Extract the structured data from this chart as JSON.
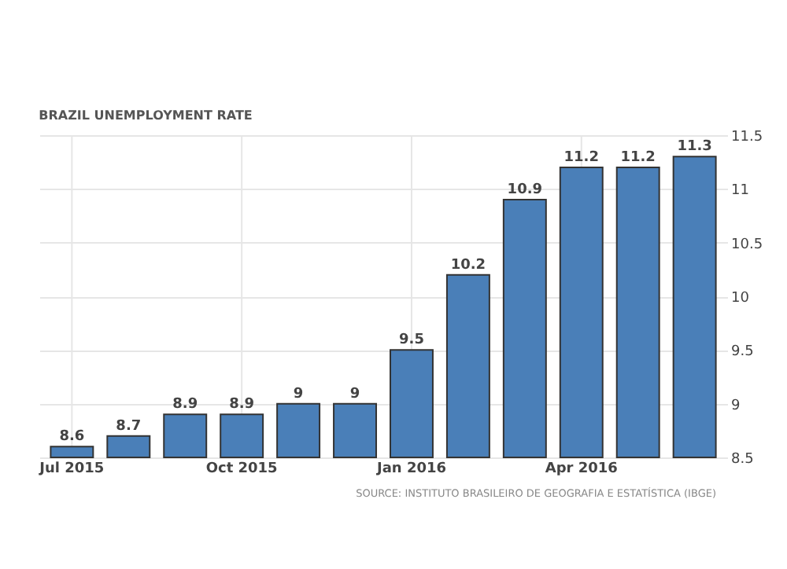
{
  "chart_data": {
    "type": "bar",
    "title": "BRAZIL UNEMPLOYMENT RATE",
    "categories": [
      "Jul 2015",
      null,
      null,
      "Oct 2015",
      null,
      null,
      "Jan 2016",
      null,
      null,
      "Apr 2016",
      null,
      null
    ],
    "values": [
      8.6,
      8.7,
      8.9,
      8.9,
      9,
      9,
      9.5,
      10.2,
      10.9,
      11.2,
      11.2,
      11.3
    ],
    "color": "#4a7fb8",
    "ylim": [
      8.5,
      11.5
    ],
    "yticks": [
      8.5,
      9,
      9.5,
      10,
      10.5,
      11,
      11.5
    ],
    "grid": true,
    "data_labels": true,
    "annotations": [
      "SOURCE: INSTITUTO BRASILEIRO DE GEOGRAFIA E ESTATÍSTICA (IBGE)"
    ]
  }
}
